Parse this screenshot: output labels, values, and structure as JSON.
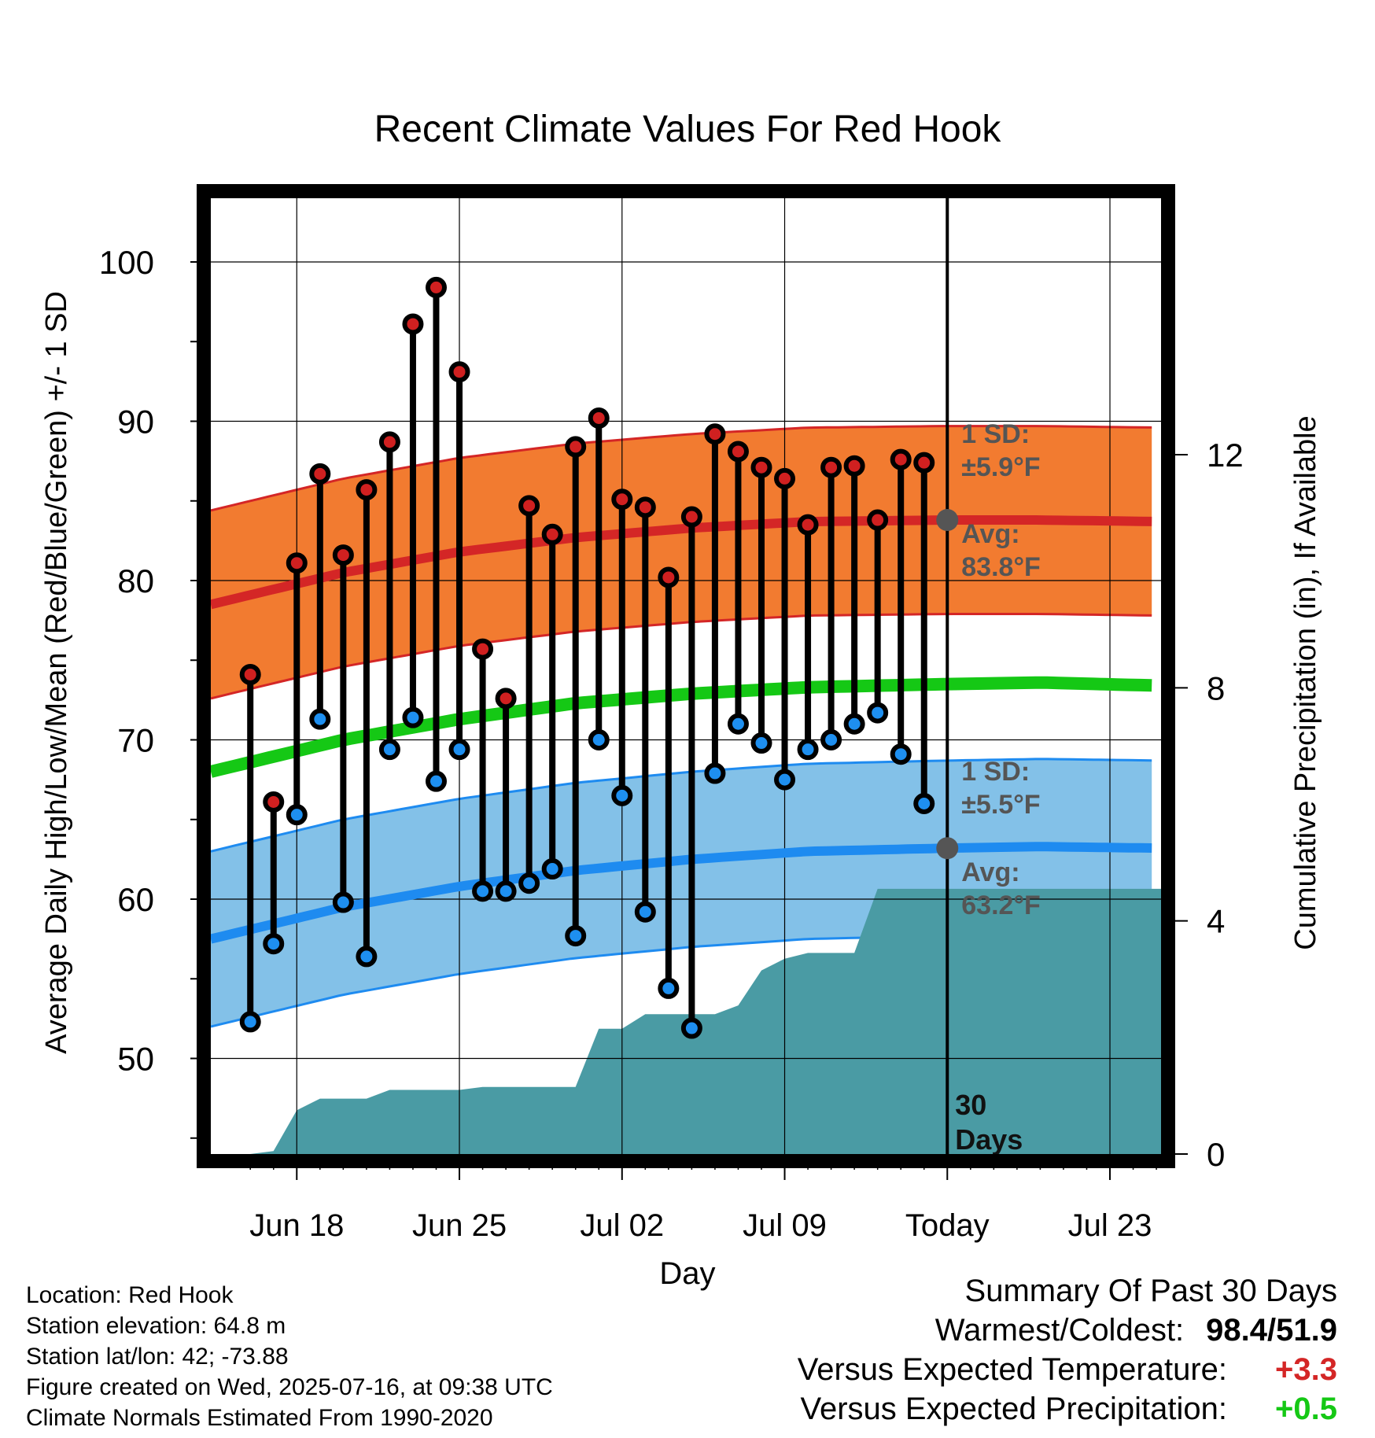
{
  "chart_data": {
    "type": "line",
    "title": "Recent Climate Values For Red Hook",
    "xlabel": "Day",
    "ylabel": "Average Daily High/Low/Mean (Red/Blue/Green) +/- 1 SD",
    "y2label": "Cumulative Precipitation (in), If Available",
    "ylim": [
      44,
      104
    ],
    "y2lim": [
      0,
      16.4
    ],
    "xlim": [
      -0.7,
      40.2
    ],
    "x_unit": "days from Jun 15, 2025",
    "x_ticks": [
      {
        "x": 3,
        "label": "Jun 18"
      },
      {
        "x": 10,
        "label": "Jun 25"
      },
      {
        "x": 17,
        "label": "Jul 02"
      },
      {
        "x": 24,
        "label": "Jul 09"
      },
      {
        "x": 31,
        "label": "Today"
      },
      {
        "x": 38,
        "label": "Jul 23"
      }
    ],
    "y_ticks": [
      50,
      60,
      70,
      80,
      90,
      100
    ],
    "y2_ticks": [
      0,
      4,
      8,
      12
    ],
    "grid": true,
    "observed": {
      "days": [
        1,
        2,
        3,
        4,
        5,
        6,
        7,
        8,
        9,
        10,
        11,
        12,
        13,
        14,
        15,
        16,
        17,
        18,
        19,
        20,
        21,
        22,
        23,
        24,
        25,
        26,
        27,
        28,
        29,
        30
      ],
      "highs": [
        74.1,
        66.1,
        81.1,
        86.7,
        81.6,
        85.7,
        88.7,
        96.1,
        98.4,
        93.1,
        75.7,
        72.6,
        84.7,
        82.9,
        88.4,
        90.2,
        85.1,
        84.6,
        80.2,
        84.0,
        89.2,
        88.1,
        87.1,
        86.4,
        83.5,
        87.1,
        87.2,
        83.8,
        87.6,
        87.4
      ],
      "lows": [
        52.3,
        57.2,
        65.3,
        71.3,
        59.8,
        56.4,
        69.4,
        71.4,
        67.4,
        69.4,
        60.5,
        60.5,
        61.0,
        61.9,
        57.7,
        70.0,
        66.5,
        59.2,
        54.4,
        51.9,
        67.9,
        71.0,
        69.8,
        67.5,
        69.4,
        70.0,
        71.0,
        71.7,
        69.1,
        66.0
      ]
    },
    "normals": {
      "days": [
        -0.7,
        5,
        10,
        15,
        20,
        25,
        31,
        35,
        40.2
      ],
      "avg_high": [
        78.5,
        80.5,
        81.8,
        82.7,
        83.3,
        83.7,
        83.8,
        83.8,
        83.7
      ],
      "avg_low": [
        57.5,
        59.5,
        60.8,
        61.8,
        62.5,
        63.0,
        63.2,
        63.3,
        63.2
      ],
      "avg_mean": [
        68.0,
        70.0,
        71.3,
        72.3,
        72.9,
        73.3,
        73.5,
        73.6,
        73.4
      ],
      "high_sd": 5.9,
      "low_sd": 5.5
    },
    "precip_cumulative": {
      "days": [
        1,
        2,
        3,
        4,
        5,
        6,
        7,
        8,
        9,
        10,
        11,
        12,
        13,
        14,
        15,
        16,
        17,
        18,
        19,
        20,
        21,
        22,
        23,
        24,
        25,
        26,
        27,
        28,
        29,
        30
      ],
      "values": [
        0.0,
        0.05,
        0.75,
        0.95,
        0.95,
        0.95,
        1.1,
        1.1,
        1.1,
        1.1,
        1.15,
        1.15,
        1.15,
        1.15,
        1.15,
        2.15,
        2.15,
        2.4,
        2.4,
        2.4,
        2.4,
        2.55,
        3.15,
        3.35,
        3.45,
        3.45,
        3.45,
        4.55,
        4.55,
        4.55
      ]
    },
    "today_day": 31,
    "annotations": {
      "high_sd_line1": "1 SD:",
      "high_sd_line2": "±5.9°F",
      "high_avg_line1": "Avg:",
      "high_avg_line2": "83.8°F",
      "low_sd_line1": "1 SD:",
      "low_sd_line2": "±5.5°F",
      "low_avg_line1": "Avg:",
      "low_avg_line2": "63.2°F",
      "window_line1": "30",
      "window_line2": "Days"
    },
    "colors": {
      "high_band": "#f27b30",
      "high_line": "#d42626",
      "low_band": "#83c1e8",
      "low_line": "#1e8bf0",
      "mean_line": "#15c815",
      "precip": "#4a9ba4",
      "high_dot": "#d02020",
      "low_dot": "#1e8ff0",
      "annotation": "#555555"
    }
  },
  "station": {
    "location": "Location: Red Hook",
    "elevation": "Station elevation: 64.8 m",
    "latlon": "Station lat/lon: 42; -73.88",
    "created": "Figure created on Wed, 2025-07-16, at 09:38 UTC",
    "normals": "Climate Normals Estimated From 1990-2020"
  },
  "summary": {
    "title": "Summary Of Past 30 Days",
    "warmest_label": "Warmest/Coldest:",
    "warmest_value": "98.4/51.9",
    "temp_label": "Versus Expected Temperature:",
    "temp_value": "+3.3",
    "temp_color": "#d42626",
    "precip_label": "Versus Expected Precipitation:",
    "precip_value": "+0.5",
    "precip_color": "#15c815"
  }
}
